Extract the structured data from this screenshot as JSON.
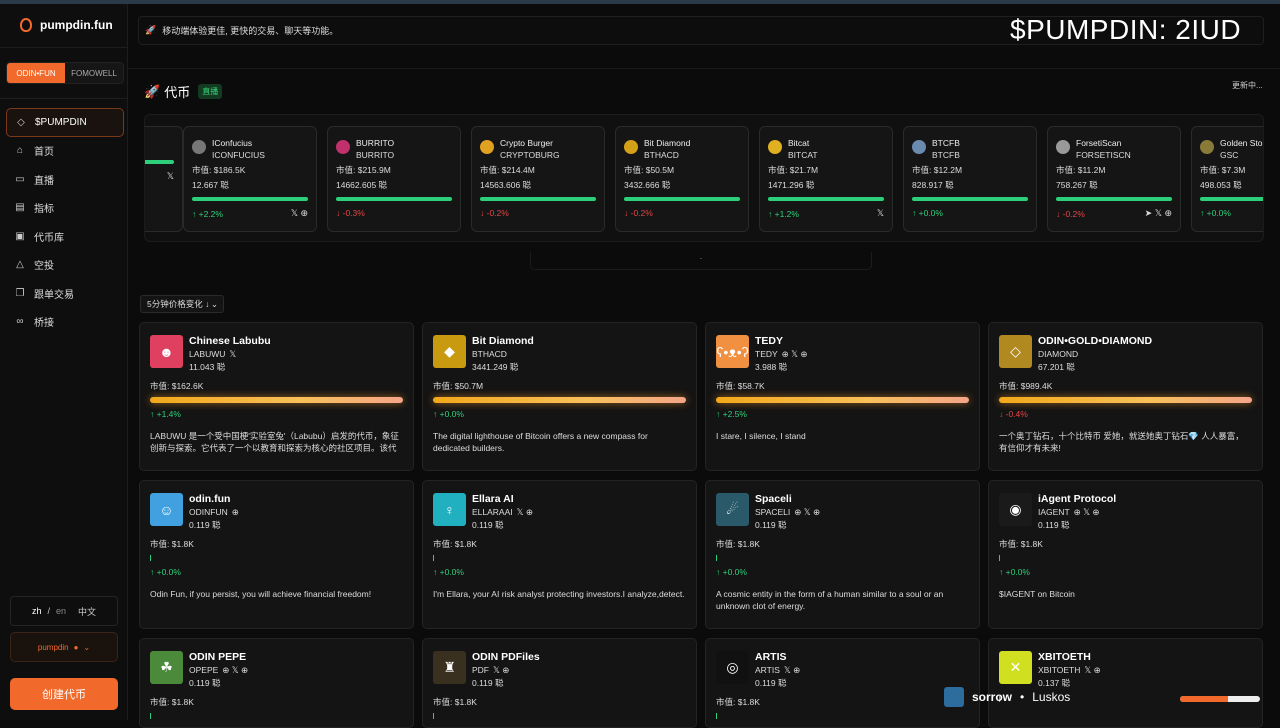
{
  "overlay_title": "$PUMPDIN: 2IUD",
  "app": {
    "name": "pumpdin.fun"
  },
  "sidebar": {
    "segments": [
      "ODIN•FUN",
      "FOMOWELL"
    ],
    "nav": [
      {
        "label": "$PUMPDIN",
        "icon": "diamond-icon"
      },
      {
        "label": "首页",
        "icon": "home-icon"
      },
      {
        "label": "直播",
        "icon": "video-icon"
      },
      {
        "label": "指标",
        "icon": "chart-icon"
      },
      {
        "label": "代币库",
        "icon": "vault-icon"
      },
      {
        "label": "空投",
        "icon": "warning-icon"
      },
      {
        "label": "跟单交易",
        "icon": "copy-icon"
      },
      {
        "label": "桥接",
        "icon": "link-icon"
      }
    ],
    "lang": {
      "zh": "zh",
      "slash": "/",
      "en": "en",
      "current": "中文"
    },
    "wallet": "pumpdin",
    "create_button": "创建代币"
  },
  "banner": {
    "text": "移动端体验更佳, 更快的交易、聊天等功能。"
  },
  "section": {
    "title": "代币",
    "badge": "直播",
    "status": "更新中..."
  },
  "carousel_dots": ".",
  "ticker": [
    {
      "name": "",
      "symbol": "",
      "mcap": "",
      "holders": "",
      "change": "",
      "dir": "up",
      "socials": "𝕏",
      "color": "#444"
    },
    {
      "name": "IConfucius",
      "symbol": "ICONFUCIUS",
      "mcap": "市值: $186.5K",
      "holders": "12.667 聪",
      "change": "↑ +2.2%",
      "dir": "up",
      "socials": "𝕏 ⊕",
      "color": "#777"
    },
    {
      "name": "BURRITO",
      "symbol": "BURRITO",
      "mcap": "市值: $215.9M",
      "holders": "14662.605 聪",
      "change": "↓ -0.3%",
      "dir": "down",
      "socials": "",
      "color": "#c0306a"
    },
    {
      "name": "Crypto Burger",
      "symbol": "CRYPTOBURG",
      "mcap": "市值: $214.4M",
      "holders": "14563.606 聪",
      "change": "↓ -0.2%",
      "dir": "down",
      "socials": "",
      "color": "#e0a020"
    },
    {
      "name": "Bit Diamond",
      "symbol": "BTHACD",
      "mcap": "市值: $50.5M",
      "holders": "3432.666 聪",
      "change": "↓ -0.2%",
      "dir": "down",
      "socials": "",
      "color": "#d4a017"
    },
    {
      "name": "Bitcat",
      "symbol": "BITCAT",
      "mcap": "市值: $21.7M",
      "holders": "1471.296 聪",
      "change": "↑ +1.2%",
      "dir": "up",
      "socials": "𝕏",
      "color": "#e0b020"
    },
    {
      "name": "BTCFB",
      "symbol": "BTCFB",
      "mcap": "市值: $12.2M",
      "holders": "828.917 聪",
      "change": "↑ +0.0%",
      "dir": "up",
      "socials": "",
      "color": "#6a8ab0"
    },
    {
      "name": "ForsetiScan",
      "symbol": "FORSETISCN",
      "mcap": "市值: $11.2M",
      "holders": "758.267 聪",
      "change": "↓ -0.2%",
      "dir": "down",
      "socials": "➤ 𝕏 ⊕",
      "color": "#999"
    },
    {
      "name": "Golden Sto",
      "symbol": "GSC",
      "mcap": "市值: $7.3M",
      "holders": "498.053 聪",
      "change": "↑ +0.0%",
      "dir": "up",
      "socials": "",
      "color": "#8a7a3a"
    }
  ],
  "sort": {
    "label": "5分钟价格变化 ↓",
    "chevron": "⌄"
  },
  "cards": [
    {
      "name": "Chinese Labubu",
      "symbol": "LABUWU",
      "social": "𝕏",
      "holders": "11.043 聪",
      "mcap": "市值: $162.6K",
      "hot": true,
      "change": "↑ +1.4%",
      "dir": "up",
      "desc": "LABUWU 是一个受中国梗'实验室兔'（Labubu）启发的代币，象征创新与探索。它代表了一个以教育和探索为核心的社区项目。该代币受到...",
      "color": "#e04060",
      "glyph": "☻"
    },
    {
      "name": "Bit Diamond",
      "symbol": "BTHACD",
      "social": "",
      "holders": "3441.249 聪",
      "mcap": "市值: $50.7M",
      "hot": true,
      "change": "↑ +0.0%",
      "dir": "up",
      "desc": "The digital lighthouse of Bitcoin offers a new compass for dedicated builders.",
      "color": "#c89a10",
      "glyph": "◆"
    },
    {
      "name": "TEDY",
      "symbol": "TEDY",
      "social": "⊕ 𝕏 ⊕",
      "holders": "3.988 聪",
      "mcap": "市值: $58.7K",
      "hot": true,
      "change": "↑ +2.5%",
      "dir": "up",
      "desc": "I stare, I silence, I stand",
      "color": "#f09040",
      "glyph": "ʕ•ᴥ•ʔ"
    },
    {
      "name": "ODIN•GOLD•DIAMOND",
      "symbol": "DIAMOND",
      "social": "",
      "holders": "67.201 聪",
      "mcap": "市值: $989.4K",
      "hot": true,
      "change": "↓ -0.4%",
      "dir": "down",
      "desc": "一个奥丁钻石，十个比特币 爱她，就送她奥丁钻石💎 人人暴富，有信仰才有未来!",
      "color": "#b08a20",
      "glyph": "◇"
    },
    {
      "name": "odin.fun",
      "symbol": "ODINFUN",
      "social": "⊕",
      "holders": "0.119 聪",
      "mcap": "市值: $1.8K",
      "hot": false,
      "change": "↑ +0.0%",
      "dir": "up",
      "desc": "Odin Fun, if you persist, you will achieve financial freedom!",
      "color": "#40a0e0",
      "glyph": "☺"
    },
    {
      "name": "Ellara AI",
      "symbol": "ELLARAAI",
      "social": "𝕏 ⊕",
      "holders": "0.119 聪",
      "mcap": "市值: $1.8K",
      "hot": false,
      "change": "↑ +0.0%",
      "dir": "up",
      "desc": "I'm Ellara, your AI risk analyst protecting investors.I analyze,detect.",
      "color": "#20b0c0",
      "glyph": "♀"
    },
    {
      "name": "Spaceli",
      "symbol": "SPACELI",
      "social": "⊕ 𝕏 ⊕",
      "holders": "0.119 聪",
      "mcap": "市值: $1.8K",
      "hot": false,
      "change": "↑ +0.0%",
      "dir": "up",
      "desc": "A cosmic entity in the form of a human similar to a soul or an unknown clot of energy.",
      "color": "#2a5a6a",
      "glyph": "☄"
    },
    {
      "name": "iAgent Protocol",
      "symbol": "IAGENT",
      "social": "⊕ 𝕏 ⊕",
      "holders": "0.119 聪",
      "mcap": "市值: $1.8K",
      "hot": false,
      "change": "↑ +0.0%",
      "dir": "up",
      "desc": "$IAGENT on Bitcoin",
      "color": "#1a1a1a",
      "glyph": "◉"
    },
    {
      "name": "ODIN PEPE",
      "symbol": "OPEPE",
      "social": "⊕ 𝕏 ⊕",
      "holders": "0.119 聪",
      "mcap": "市值: $1.8K",
      "hot": false,
      "change": "",
      "dir": "up",
      "desc": "",
      "color": "#4a8a3a",
      "glyph": "☘"
    },
    {
      "name": "ODIN PDFiles",
      "symbol": "PDF",
      "social": "𝕏 ⊕",
      "holders": "0.119 聪",
      "mcap": "市值: $1.8K",
      "hot": false,
      "change": "",
      "dir": "up",
      "desc": "",
      "color": "#3a3020",
      "glyph": "♜"
    },
    {
      "name": "ARTIS",
      "symbol": "ARTIS",
      "social": "𝕏 ⊕",
      "holders": "0.119 聪",
      "mcap": "市值: $1.8K",
      "hot": false,
      "change": "",
      "dir": "up",
      "desc": "",
      "color": "#111",
      "glyph": "◎"
    },
    {
      "name": "XBITOETH",
      "symbol": "XBITOETH",
      "social": "𝕏 ⊕",
      "holders": "0.137 聪",
      "mcap": "",
      "hot": false,
      "change": "",
      "dir": "up",
      "desc": "",
      "color": "#d0e020",
      "glyph": "✕"
    }
  ],
  "bottom": {
    "user": "sorrow",
    "dot": "•",
    "other": "Luskos",
    "progress": 0.6
  }
}
